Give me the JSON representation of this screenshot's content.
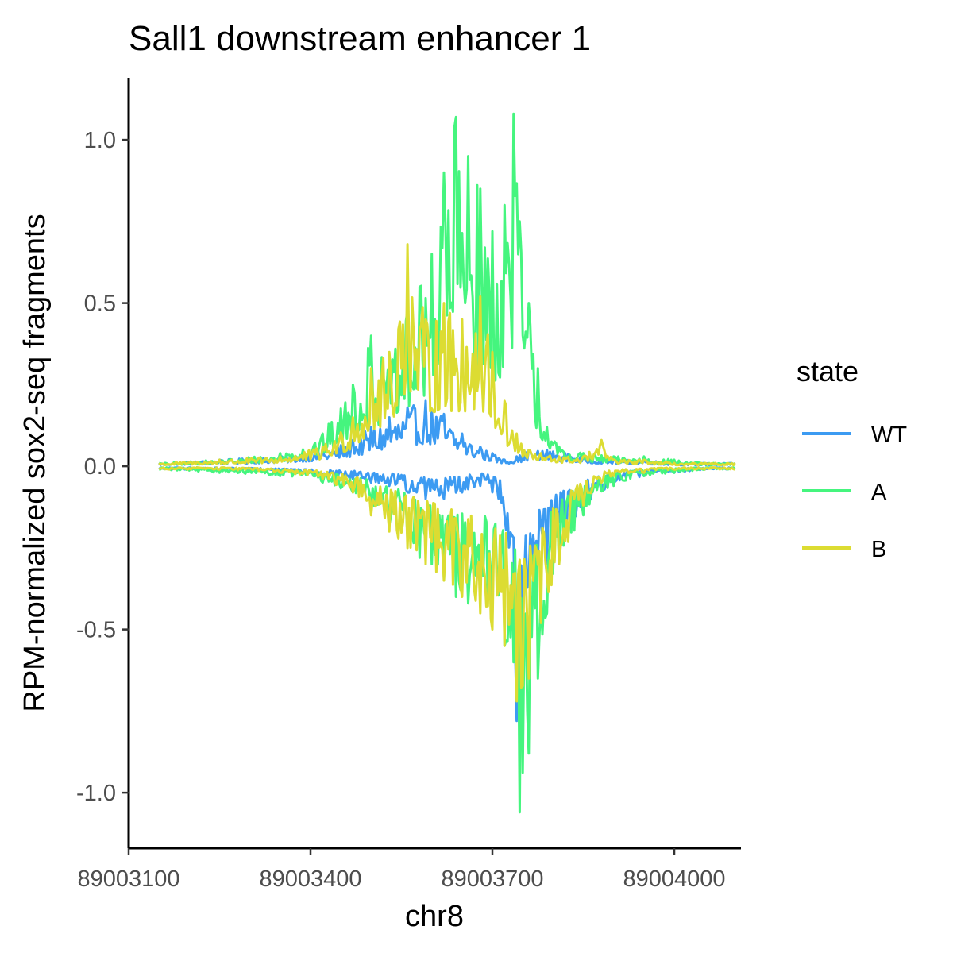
{
  "chart_data": {
    "type": "line",
    "title": "Sall1 downstream enhancer 1",
    "xlabel": "chr8",
    "ylabel": "RPM-normalized sox2-seq fragments",
    "xlim": [
      89003100,
      89004110
    ],
    "ylim": [
      -1.17,
      1.19
    ],
    "x_ticks": [
      89003100,
      89003400,
      89003700,
      89004000
    ],
    "x_tick_labels": [
      "89003100",
      "89003400",
      "89003700",
      "89004000"
    ],
    "y_ticks": [
      -1.0,
      -0.5,
      0.0,
      0.5,
      1.0
    ],
    "y_tick_labels": [
      "-1.0",
      "-0.5",
      "0.0",
      "0.5",
      "1.0"
    ],
    "grid": false,
    "legend": {
      "title": "state",
      "placement": "right",
      "entries": [
        {
          "name": "WT",
          "color": "#3c9bf2"
        },
        {
          "name": "A",
          "color": "#45f57e"
        },
        {
          "name": "B",
          "color": "#dcdc32"
        }
      ]
    },
    "series": [
      {
        "name": "WT",
        "color": "#3c9bf2",
        "x": [
          89003150,
          89003250,
          89003350,
          89003420,
          89003470,
          89003500,
          89003530,
          89003560,
          89003590,
          89003620,
          89003650,
          89003680,
          89003700,
          89003720,
          89003740,
          89003760,
          89003790,
          89003820,
          89003850,
          89003900,
          89003950,
          89004000,
          89004050,
          89004100
        ],
        "plus": [
          0.01,
          0.02,
          0.03,
          0.05,
          0.08,
          0.12,
          0.15,
          0.18,
          0.2,
          0.16,
          0.1,
          0.06,
          0.04,
          0.02,
          0.03,
          0.05,
          0.05,
          0.04,
          0.03,
          0.02,
          0.02,
          0.01,
          0.01,
          0.01
        ],
        "minus": [
          -0.01,
          -0.01,
          -0.02,
          -0.03,
          -0.04,
          -0.05,
          -0.06,
          -0.08,
          -0.1,
          -0.1,
          -0.08,
          -0.06,
          -0.08,
          -0.15,
          -0.78,
          -0.35,
          -0.3,
          -0.2,
          -0.12,
          -0.05,
          -0.03,
          -0.02,
          -0.01,
          -0.01
        ]
      },
      {
        "name": "A",
        "color": "#45f57e",
        "x": [
          89003150,
          89003250,
          89003350,
          89003420,
          89003470,
          89003500,
          89003530,
          89003560,
          89003580,
          89003600,
          89003620,
          89003640,
          89003660,
          89003680,
          89003700,
          89003720,
          89003735,
          89003745,
          89003760,
          89003775,
          89003790,
          89003810,
          89003850,
          89003900,
          89003950,
          89004000,
          89004050,
          89004100
        ],
        "plus": [
          0.01,
          0.02,
          0.04,
          0.1,
          0.25,
          0.4,
          0.3,
          0.48,
          0.55,
          0.65,
          0.9,
          1.07,
          0.95,
          0.85,
          0.72,
          0.8,
          1.08,
          0.75,
          0.5,
          0.3,
          0.12,
          0.06,
          0.04,
          0.03,
          0.03,
          0.02,
          0.01,
          0.01
        ],
        "minus": [
          -0.01,
          -0.02,
          -0.03,
          -0.05,
          -0.08,
          -0.12,
          -0.18,
          -0.22,
          -0.28,
          -0.3,
          -0.35,
          -0.4,
          -0.42,
          -0.38,
          -0.45,
          -0.55,
          -0.6,
          -1.06,
          -0.88,
          -0.65,
          -0.45,
          -0.3,
          -0.15,
          -0.06,
          -0.03,
          -0.02,
          -0.01,
          -0.01
        ]
      },
      {
        "name": "B",
        "color": "#dcdc32",
        "x": [
          89003150,
          89003250,
          89003350,
          89003420,
          89003470,
          89003500,
          89003530,
          89003560,
          89003590,
          89003620,
          89003650,
          89003680,
          89003700,
          89003720,
          89003740,
          89003760,
          89003780,
          89003810,
          89003850,
          89003880,
          89003900,
          89003950,
          89004000,
          89004050,
          89004100
        ],
        "plus": [
          0.01,
          0.02,
          0.03,
          0.06,
          0.15,
          0.3,
          0.35,
          0.68,
          0.45,
          0.5,
          0.45,
          0.52,
          0.35,
          0.2,
          0.1,
          0.05,
          0.04,
          0.03,
          0.03,
          0.08,
          0.02,
          0.02,
          0.01,
          0.01,
          0.01
        ],
        "minus": [
          -0.01,
          -0.01,
          -0.02,
          -0.04,
          -0.08,
          -0.15,
          -0.2,
          -0.25,
          -0.3,
          -0.35,
          -0.4,
          -0.45,
          -0.5,
          -0.55,
          -0.72,
          -0.65,
          -0.48,
          -0.3,
          -0.12,
          -0.05,
          -0.03,
          -0.02,
          -0.01,
          -0.01,
          -0.01
        ]
      }
    ]
  }
}
